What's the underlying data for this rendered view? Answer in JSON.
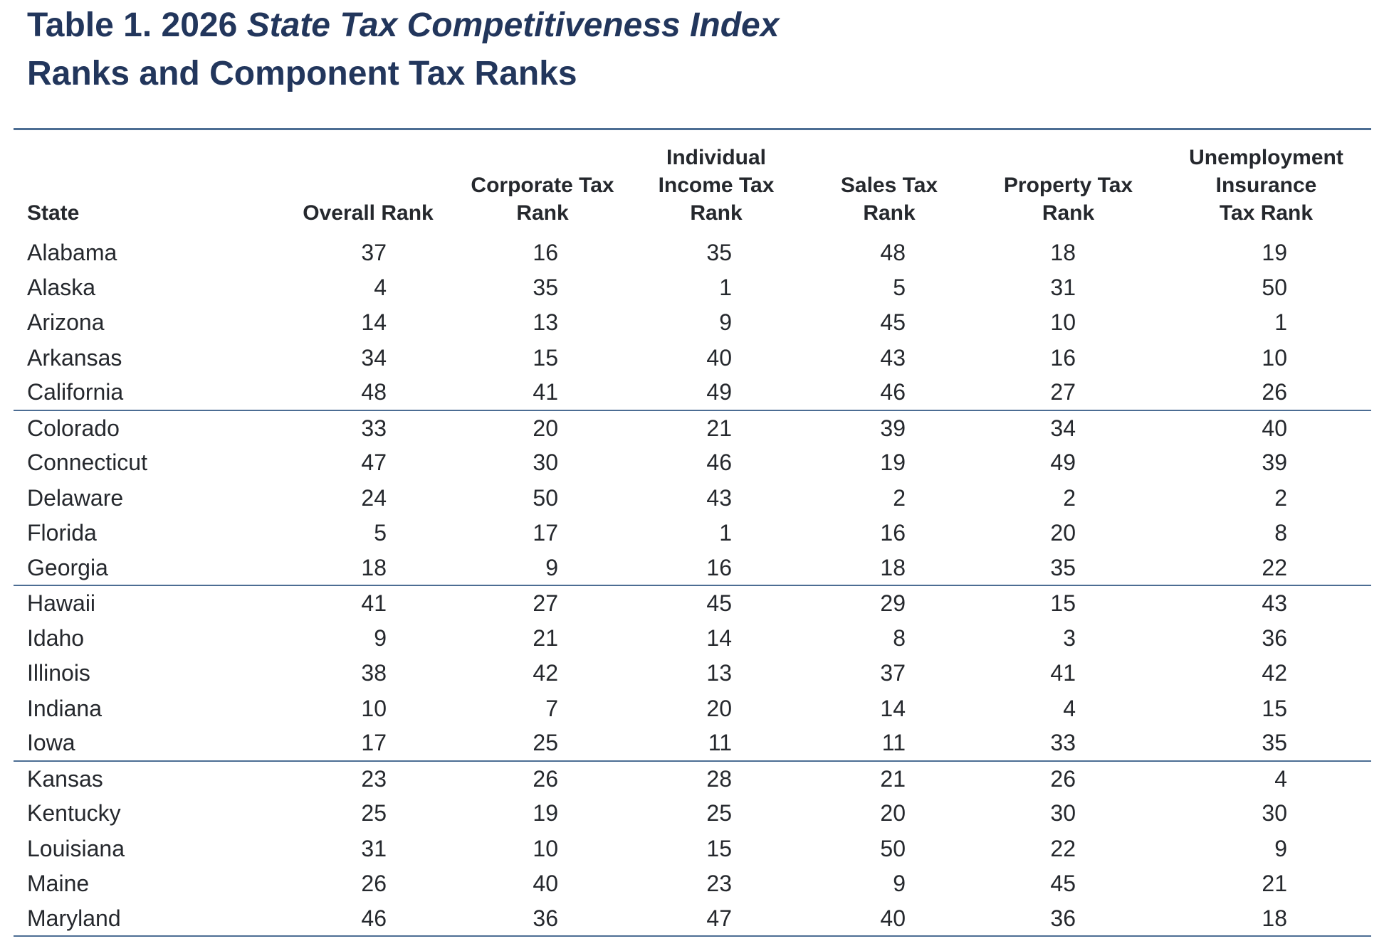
{
  "title": {
    "prefix": "Table 1. 2026 ",
    "italic_part": "State Tax Competitiveness Index",
    "line2": "Ranks and Component Tax Ranks"
  },
  "colors": {
    "title_navy": "#22365c",
    "rule_blue": "#4c6d93",
    "body_text": "#25282d",
    "background": "#ffffff"
  },
  "table": {
    "headers": [
      {
        "id": "state",
        "lines": [
          "State"
        ]
      },
      {
        "id": "overall",
        "lines": [
          "Overall Rank"
        ]
      },
      {
        "id": "corporate",
        "lines": [
          "Corporate Tax",
          "Rank"
        ]
      },
      {
        "id": "individual",
        "lines": [
          "Individual",
          "Income Tax",
          "Rank"
        ]
      },
      {
        "id": "sales",
        "lines": [
          "Sales Tax",
          "Rank"
        ]
      },
      {
        "id": "property",
        "lines": [
          "Property Tax",
          "Rank"
        ]
      },
      {
        "id": "unemployment",
        "lines": [
          "Unemployment",
          "Insurance",
          "Tax Rank"
        ]
      }
    ],
    "rows": [
      [
        "Alabama",
        37,
        16,
        35,
        48,
        18,
        19
      ],
      [
        "Alaska",
        4,
        35,
        1,
        5,
        31,
        50
      ],
      [
        "Arizona",
        14,
        13,
        9,
        45,
        10,
        1
      ],
      [
        "Arkansas",
        34,
        15,
        40,
        43,
        16,
        10
      ],
      [
        "California",
        48,
        41,
        49,
        46,
        27,
        26
      ],
      [
        "Colorado",
        33,
        20,
        21,
        39,
        34,
        40
      ],
      [
        "Connecticut",
        47,
        30,
        46,
        19,
        49,
        39
      ],
      [
        "Delaware",
        24,
        50,
        43,
        2,
        2,
        2
      ],
      [
        "Florida",
        5,
        17,
        1,
        16,
        20,
        8
      ],
      [
        "Georgia",
        18,
        9,
        16,
        18,
        35,
        22
      ],
      [
        "Hawaii",
        41,
        27,
        45,
        29,
        15,
        43
      ],
      [
        "Idaho",
        9,
        21,
        14,
        8,
        3,
        36
      ],
      [
        "Illinois",
        38,
        42,
        13,
        37,
        41,
        42
      ],
      [
        "Indiana",
        10,
        7,
        20,
        14,
        4,
        15
      ],
      [
        "Iowa",
        17,
        25,
        11,
        11,
        33,
        35
      ],
      [
        "Kansas",
        23,
        26,
        28,
        21,
        26,
        4
      ],
      [
        "Kentucky",
        25,
        19,
        25,
        20,
        30,
        30
      ],
      [
        "Louisiana",
        31,
        10,
        15,
        50,
        22,
        9
      ],
      [
        "Maine",
        26,
        40,
        23,
        9,
        45,
        21
      ],
      [
        "Maryland",
        46,
        36,
        47,
        40,
        36,
        18
      ]
    ],
    "rows_per_group": 5
  }
}
